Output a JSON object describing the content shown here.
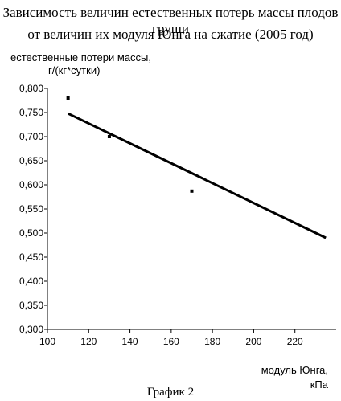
{
  "chart_data": {
    "type": "scatter",
    "title": "Зависимость величин естественных потерь массы плодов груши",
    "subtitle": "от  величин их модуля Юнга на сжатие (2005 год)",
    "ylabel_line1": "естественные потери массы,",
    "ylabel_line2": "г/(кг*сутки)",
    "xlabel_line1": "модуль Юнга,",
    "xlabel_line2": "кПа",
    "caption": "График 2",
    "xlim": [
      100,
      240
    ],
    "ylim": [
      0.3,
      0.8
    ],
    "x_ticks": [
      "100",
      "120",
      "140",
      "160",
      "180",
      "200",
      "220"
    ],
    "x_tick_values": [
      100,
      120,
      140,
      160,
      180,
      200,
      220
    ],
    "y_ticks": [
      "0,300",
      "0,350",
      "0,400",
      "0,450",
      "0,500",
      "0,550",
      "0,600",
      "0,650",
      "0,700",
      "0,750",
      "0,800"
    ],
    "y_tick_values": [
      0.3,
      0.35,
      0.4,
      0.45,
      0.5,
      0.55,
      0.6,
      0.65,
      0.7,
      0.75,
      0.8
    ],
    "points": [
      {
        "x": 110,
        "y": 0.78
      },
      {
        "x": 130,
        "y": 0.7
      },
      {
        "x": 170,
        "y": 0.587
      }
    ],
    "trendline": {
      "x": [
        110,
        235
      ],
      "y": [
        0.748,
        0.49
      ]
    },
    "grid": false,
    "legend": "none"
  }
}
